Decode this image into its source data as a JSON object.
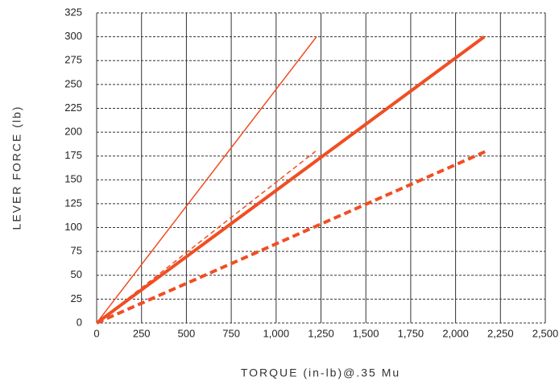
{
  "chart_data": {
    "type": "line",
    "x_label": "TORQUE (in-lb)@.35 Mu",
    "y_label": "LEVER FORCE (lb)",
    "xlim": [
      0,
      2500
    ],
    "ylim": [
      0,
      325
    ],
    "xticks": [
      0,
      250,
      500,
      750,
      {
        "value": 1000,
        "label": "1,000"
      },
      {
        "value": 1250,
        "label": "1,250"
      },
      {
        "value": 1500,
        "label": "1,500"
      },
      {
        "value": 1750,
        "label": "1,750"
      },
      {
        "value": 2000,
        "label": "2,000"
      },
      {
        "value": 2250,
        "label": "2,250"
      },
      {
        "value": 2500,
        "label": "2,500"
      }
    ],
    "yticks": [
      0,
      25,
      50,
      75,
      100,
      125,
      150,
      175,
      200,
      225,
      250,
      275,
      300,
      325
    ],
    "grid": true,
    "series": [
      {
        "color": "#f04e23",
        "line_width": 1.5,
        "dashed": false,
        "x": [
          0,
          1225
        ],
        "values": [
          0,
          300
        ]
      },
      {
        "color": "#f04e23",
        "line_width": 1.5,
        "dashed": true,
        "x": [
          0,
          1220
        ],
        "values": [
          0,
          180
        ]
      },
      {
        "color": "#f04e23",
        "line_width": 4,
        "dashed": false,
        "x": [
          0,
          2160
        ],
        "values": [
          0,
          300
        ]
      },
      {
        "color": "#f04e23",
        "line_width": 4,
        "dashed": true,
        "x": [
          0,
          2170
        ],
        "values": [
          0,
          180
        ]
      }
    ]
  }
}
